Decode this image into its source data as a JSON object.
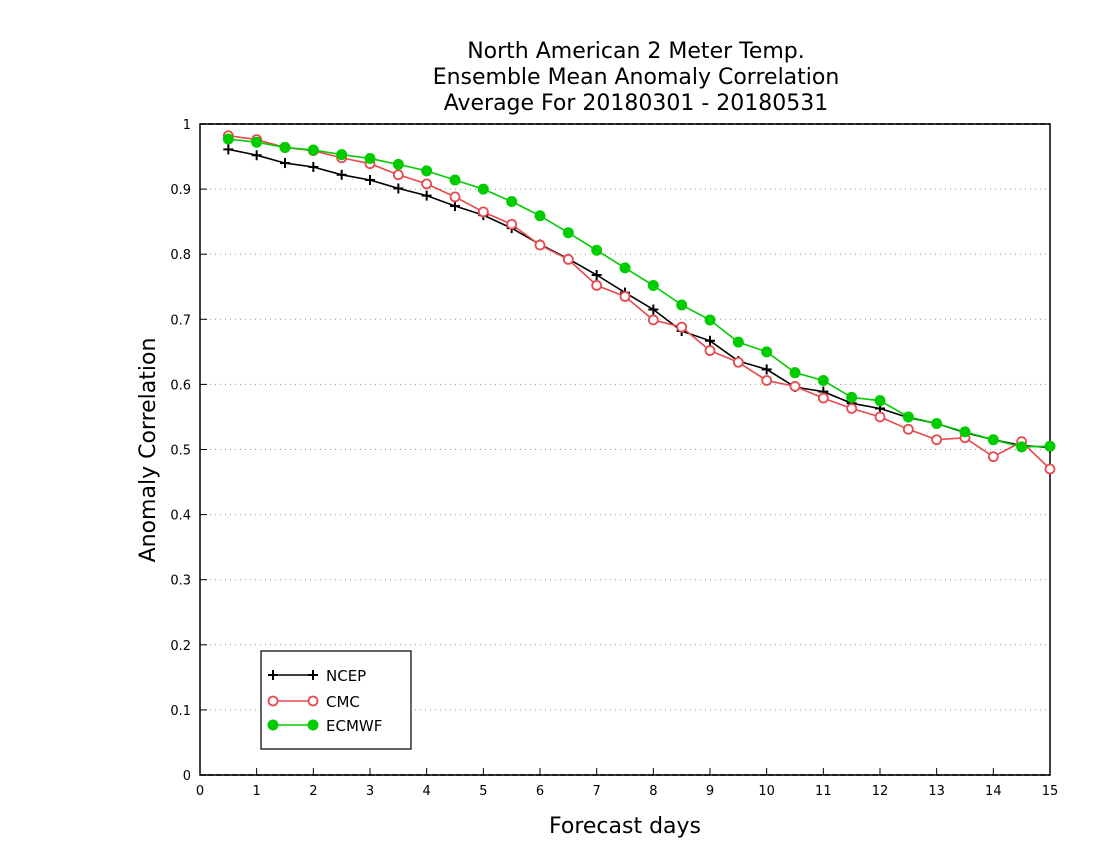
{
  "chart_data": {
    "type": "line",
    "title": [
      "North American 2 Meter Temp.",
      "Ensemble Mean Anomaly Correlation",
      "Average For 20180301 - 20180531"
    ],
    "xlabel": "Forecast days",
    "ylabel": "Anomaly Correlation",
    "xlim": [
      0,
      15
    ],
    "ylim": [
      0,
      1
    ],
    "xticks": [
      "0",
      "1",
      "2",
      "3",
      "4",
      "5",
      "6",
      "7",
      "8",
      "9",
      "10",
      "11",
      "12",
      "13",
      "14",
      "15"
    ],
    "yticks": [
      "0",
      "0.1",
      "0.2",
      "0.3",
      "0.4",
      "0.5",
      "0.6",
      "0.7",
      "0.8",
      "0.9",
      "1"
    ],
    "grid": "horizontal dotted",
    "legend_position": "bottom-left",
    "x": [
      0.5,
      1,
      1.5,
      2,
      2.5,
      3,
      3.5,
      4,
      4.5,
      5,
      5.5,
      6,
      6.5,
      7,
      7.5,
      8,
      8.5,
      9,
      9.5,
      10,
      10.5,
      11,
      11.5,
      12,
      12.5,
      13,
      13.5,
      14,
      14.5,
      15
    ],
    "series": [
      {
        "name": "NCEP",
        "color": "#000000",
        "marker": "plus",
        "values": [
          0.961,
          0.952,
          0.94,
          0.934,
          0.922,
          0.914,
          0.901,
          0.89,
          0.874,
          0.86,
          0.84,
          0.815,
          0.793,
          0.768,
          0.741,
          0.715,
          0.682,
          0.667,
          0.636,
          0.623,
          0.596,
          0.589,
          0.571,
          0.563,
          0.549,
          0.54,
          0.526,
          0.515,
          0.506,
          0.503
        ]
      },
      {
        "name": "CMC",
        "color": "#e8484e",
        "marker": "open-circle",
        "values": [
          0.982,
          0.976,
          0.964,
          0.959,
          0.948,
          0.939,
          0.922,
          0.908,
          0.888,
          0.865,
          0.846,
          0.814,
          0.792,
          0.752,
          0.735,
          0.699,
          0.688,
          0.652,
          0.634,
          0.606,
          0.597,
          0.579,
          0.563,
          0.55,
          0.531,
          0.515,
          0.518,
          0.489,
          0.512,
          0.47
        ]
      },
      {
        "name": "ECMWF",
        "color": "#00cc00",
        "marker": "filled-circle",
        "values": [
          0.977,
          0.972,
          0.964,
          0.96,
          0.953,
          0.947,
          0.938,
          0.928,
          0.914,
          0.9,
          0.881,
          0.859,
          0.833,
          0.806,
          0.779,
          0.752,
          0.722,
          0.699,
          0.665,
          0.65,
          0.618,
          0.606,
          0.58,
          0.575,
          0.55,
          0.54,
          0.527,
          0.515,
          0.504,
          0.505
        ]
      }
    ]
  }
}
